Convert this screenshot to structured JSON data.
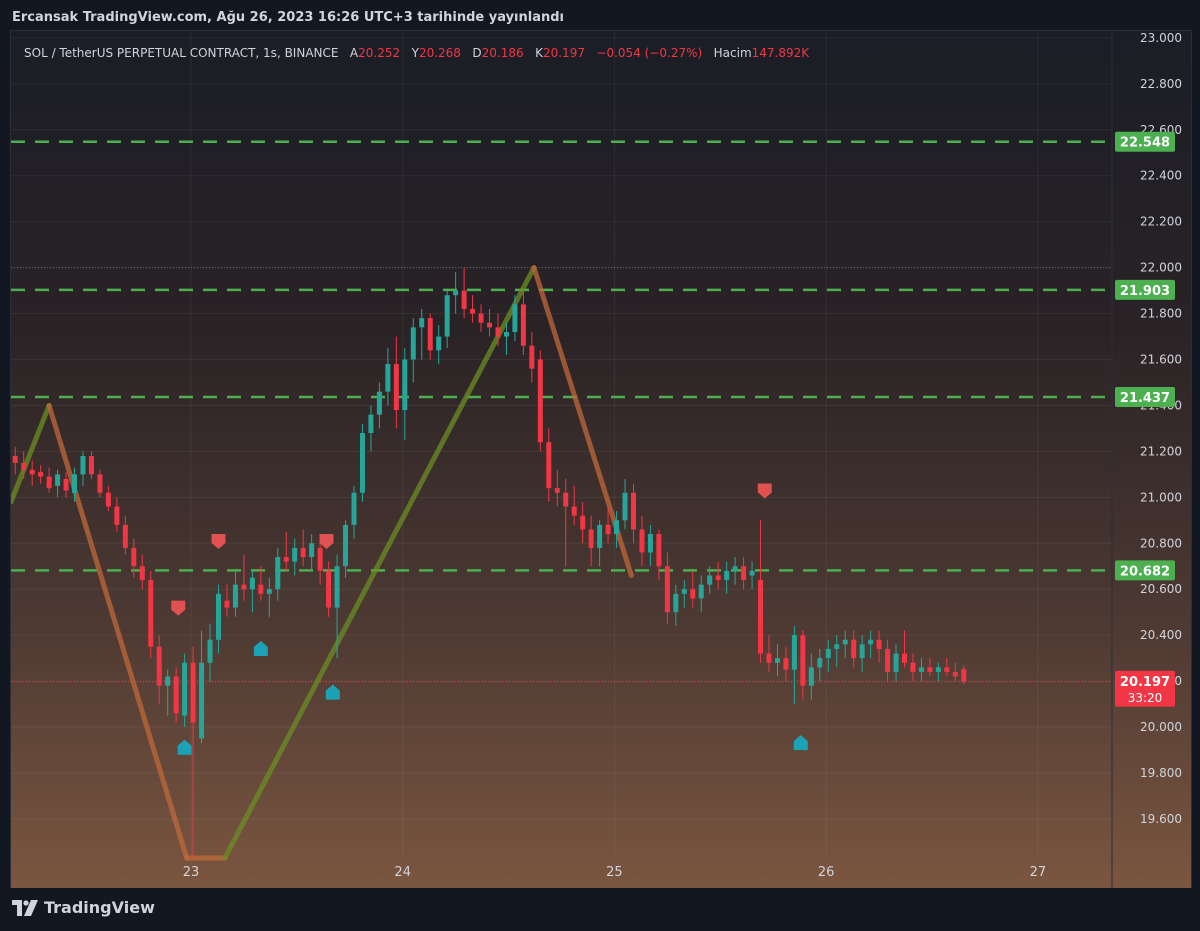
{
  "header": {
    "published": "Ercansak TradingView.com, Ağu 26, 2023 16:26 UTC+3 tarihinde yayınlandı"
  },
  "legend": {
    "symbol": "SOL / TetherUS PERPETUAL CONTRACT, 1s, BINANCE",
    "open_label": "A",
    "open": "20.252",
    "high_label": "Y",
    "high": "20.268",
    "low_label": "D",
    "low": "20.186",
    "close_label": "K",
    "close": "20.197",
    "change": "−0.054 (−0.27%)",
    "volume_label": "Hacim",
    "volume": "147.892K"
  },
  "footer": {
    "brand": "TradingView"
  },
  "colors": {
    "up": "#26a69a",
    "down": "#f23645",
    "level": "#4caf50",
    "zigzag_up": "#6b8e23",
    "zigzag_down": "#c0683a",
    "marker_sell": "#e05252",
    "marker_buy": "#1ba3b5"
  },
  "chart_data": {
    "type": "candlestick",
    "y_axis_ticks": [
      "19.600",
      "19.800",
      "20.000",
      "20.200",
      "20.400",
      "20.600",
      "20.800",
      "21.000",
      "21.200",
      "21.400",
      "21.600",
      "21.800",
      "22.000",
      "22.200",
      "22.400",
      "22.600",
      "22.800",
      "23.000"
    ],
    "x_axis_ticks": [
      "23",
      "24",
      "25",
      "26",
      "27"
    ],
    "ylim": [
      19.43,
      23.03
    ],
    "xlim": [
      22.15,
      27.35
    ],
    "levels": [
      {
        "label": "22.548",
        "value": 22.548
      },
      {
        "label": "21.903",
        "value": 21.903
      },
      {
        "label": "21.437",
        "value": 21.437
      },
      {
        "label": "20.682",
        "value": 20.682
      }
    ],
    "last_price": {
      "label": "20.197",
      "value": 20.197,
      "countdown": "33:20"
    },
    "zigzag": [
      {
        "x": 22.15,
        "y": 20.98
      },
      {
        "x": 22.33,
        "y": 21.4
      },
      {
        "x": 22.98,
        "y": 19.43
      },
      {
        "x": 23.16,
        "y": 19.43
      },
      {
        "x": 24.62,
        "y": 22.0
      },
      {
        "x": 25.08,
        "y": 20.66
      }
    ],
    "sell_markers": [
      {
        "x": 22.94,
        "y": 20.52
      },
      {
        "x": 23.13,
        "y": 20.81
      },
      {
        "x": 23.64,
        "y": 20.81
      },
      {
        "x": 25.71,
        "y": 21.03
      }
    ],
    "buy_markers": [
      {
        "x": 22.97,
        "y": 19.91
      },
      {
        "x": 23.33,
        "y": 20.34
      },
      {
        "x": 23.67,
        "y": 20.15
      },
      {
        "x": 25.88,
        "y": 19.93
      }
    ],
    "candles": [
      {
        "x": 22.17,
        "o": 21.18,
        "h": 21.22,
        "l": 21.1,
        "c": 21.15
      },
      {
        "x": 22.21,
        "o": 21.15,
        "h": 21.2,
        "l": 21.08,
        "c": 21.12
      },
      {
        "x": 22.25,
        "o": 21.12,
        "h": 21.16,
        "l": 21.05,
        "c": 21.1
      },
      {
        "x": 22.29,
        "o": 21.11,
        "h": 21.14,
        "l": 21.06,
        "c": 21.09
      },
      {
        "x": 22.33,
        "o": 21.09,
        "h": 21.13,
        "l": 21.02,
        "c": 21.04
      },
      {
        "x": 22.37,
        "o": 21.05,
        "h": 21.12,
        "l": 21.0,
        "c": 21.1
      },
      {
        "x": 22.41,
        "o": 21.08,
        "h": 21.11,
        "l": 21.0,
        "c": 21.03
      },
      {
        "x": 22.45,
        "o": 21.02,
        "h": 21.13,
        "l": 20.98,
        "c": 21.1
      },
      {
        "x": 22.49,
        "o": 21.1,
        "h": 21.2,
        "l": 21.05,
        "c": 21.18
      },
      {
        "x": 22.53,
        "o": 21.18,
        "h": 21.2,
        "l": 21.08,
        "c": 21.1
      },
      {
        "x": 22.57,
        "o": 21.1,
        "h": 21.12,
        "l": 21.0,
        "c": 21.02
      },
      {
        "x": 22.61,
        "o": 21.02,
        "h": 21.05,
        "l": 20.94,
        "c": 20.96
      },
      {
        "x": 22.65,
        "o": 20.96,
        "h": 21.0,
        "l": 20.85,
        "c": 20.88
      },
      {
        "x": 22.69,
        "o": 20.88,
        "h": 20.92,
        "l": 20.75,
        "c": 20.78
      },
      {
        "x": 22.73,
        "o": 20.78,
        "h": 20.82,
        "l": 20.65,
        "c": 20.7
      },
      {
        "x": 22.77,
        "o": 20.7,
        "h": 20.75,
        "l": 20.6,
        "c": 20.64
      },
      {
        "x": 22.81,
        "o": 20.64,
        "h": 20.68,
        "l": 20.3,
        "c": 20.35
      },
      {
        "x": 22.85,
        "o": 20.35,
        "h": 20.4,
        "l": 20.1,
        "c": 20.18
      },
      {
        "x": 22.89,
        "o": 20.18,
        "h": 20.25,
        "l": 20.05,
        "c": 20.22
      },
      {
        "x": 22.93,
        "o": 20.22,
        "h": 20.26,
        "l": 20.02,
        "c": 20.06
      },
      {
        "x": 22.97,
        "o": 20.05,
        "h": 20.32,
        "l": 20.0,
        "c": 20.28
      },
      {
        "x": 23.01,
        "o": 20.28,
        "h": 20.35,
        "l": 19.43,
        "c": 20.02
      },
      {
        "x": 23.05,
        "o": 19.95,
        "h": 20.42,
        "l": 19.93,
        "c": 20.28
      },
      {
        "x": 23.09,
        "o": 20.28,
        "h": 20.45,
        "l": 20.2,
        "c": 20.38
      },
      {
        "x": 23.13,
        "o": 20.38,
        "h": 20.62,
        "l": 20.32,
        "c": 20.58
      },
      {
        "x": 23.17,
        "o": 20.55,
        "h": 20.62,
        "l": 20.48,
        "c": 20.52
      },
      {
        "x": 23.21,
        "o": 20.52,
        "h": 20.68,
        "l": 20.48,
        "c": 20.62
      },
      {
        "x": 23.25,
        "o": 20.62,
        "h": 20.75,
        "l": 20.55,
        "c": 20.6
      },
      {
        "x": 23.29,
        "o": 20.6,
        "h": 20.68,
        "l": 20.5,
        "c": 20.65
      },
      {
        "x": 23.33,
        "o": 20.62,
        "h": 20.7,
        "l": 20.55,
        "c": 20.58
      },
      {
        "x": 23.37,
        "o": 20.58,
        "h": 20.65,
        "l": 20.48,
        "c": 20.6
      },
      {
        "x": 23.41,
        "o": 20.6,
        "h": 20.78,
        "l": 20.55,
        "c": 20.74
      },
      {
        "x": 23.45,
        "o": 20.74,
        "h": 20.85,
        "l": 20.68,
        "c": 20.72
      },
      {
        "x": 23.49,
        "o": 20.72,
        "h": 20.82,
        "l": 20.66,
        "c": 20.78
      },
      {
        "x": 23.53,
        "o": 20.78,
        "h": 20.86,
        "l": 20.7,
        "c": 20.74
      },
      {
        "x": 23.57,
        "o": 20.74,
        "h": 20.84,
        "l": 20.68,
        "c": 20.8
      },
      {
        "x": 23.61,
        "o": 20.78,
        "h": 20.82,
        "l": 20.62,
        "c": 20.68
      },
      {
        "x": 23.65,
        "o": 20.68,
        "h": 20.72,
        "l": 20.48,
        "c": 20.52
      },
      {
        "x": 23.69,
        "o": 20.52,
        "h": 20.75,
        "l": 20.3,
        "c": 20.7
      },
      {
        "x": 23.73,
        "o": 20.7,
        "h": 20.9,
        "l": 20.65,
        "c": 20.88
      },
      {
        "x": 23.77,
        "o": 20.88,
        "h": 21.05,
        "l": 20.82,
        "c": 21.02
      },
      {
        "x": 23.81,
        "o": 21.02,
        "h": 21.32,
        "l": 20.98,
        "c": 21.28
      },
      {
        "x": 23.85,
        "o": 21.28,
        "h": 21.4,
        "l": 21.2,
        "c": 21.36
      },
      {
        "x": 23.89,
        "o": 21.36,
        "h": 21.5,
        "l": 21.3,
        "c": 21.46
      },
      {
        "x": 23.93,
        "o": 21.46,
        "h": 21.65,
        "l": 21.4,
        "c": 21.58
      },
      {
        "x": 23.97,
        "o": 21.58,
        "h": 21.7,
        "l": 21.3,
        "c": 21.38
      },
      {
        "x": 24.01,
        "o": 21.38,
        "h": 21.65,
        "l": 21.25,
        "c": 21.6
      },
      {
        "x": 24.05,
        "o": 21.6,
        "h": 21.78,
        "l": 21.5,
        "c": 21.74
      },
      {
        "x": 24.09,
        "o": 21.74,
        "h": 21.82,
        "l": 21.6,
        "c": 21.78
      },
      {
        "x": 24.13,
        "o": 21.78,
        "h": 21.8,
        "l": 21.6,
        "c": 21.64
      },
      {
        "x": 24.17,
        "o": 21.64,
        "h": 21.75,
        "l": 21.58,
        "c": 21.7
      },
      {
        "x": 24.21,
        "o": 21.7,
        "h": 21.9,
        "l": 21.65,
        "c": 21.88
      },
      {
        "x": 24.25,
        "o": 21.88,
        "h": 21.98,
        "l": 21.8,
        "c": 21.9
      },
      {
        "x": 24.29,
        "o": 21.9,
        "h": 22.0,
        "l": 21.78,
        "c": 21.82
      },
      {
        "x": 24.33,
        "o": 21.82,
        "h": 21.88,
        "l": 21.76,
        "c": 21.8
      },
      {
        "x": 24.37,
        "o": 21.8,
        "h": 21.84,
        "l": 21.72,
        "c": 21.76
      },
      {
        "x": 24.41,
        "o": 21.76,
        "h": 21.82,
        "l": 21.7,
        "c": 21.74
      },
      {
        "x": 24.45,
        "o": 21.74,
        "h": 21.8,
        "l": 21.66,
        "c": 21.7
      },
      {
        "x": 24.49,
        "o": 21.7,
        "h": 21.76,
        "l": 21.62,
        "c": 21.72
      },
      {
        "x": 24.53,
        "o": 21.72,
        "h": 21.88,
        "l": 21.68,
        "c": 21.84
      },
      {
        "x": 24.57,
        "o": 21.84,
        "h": 21.9,
        "l": 21.62,
        "c": 21.66
      },
      {
        "x": 24.61,
        "o": 21.66,
        "h": 21.72,
        "l": 21.5,
        "c": 21.56
      },
      {
        "x": 24.65,
        "o": 21.6,
        "h": 21.64,
        "l": 21.2,
        "c": 21.24
      },
      {
        "x": 24.69,
        "o": 21.24,
        "h": 21.3,
        "l": 20.98,
        "c": 21.04
      },
      {
        "x": 24.73,
        "o": 21.04,
        "h": 21.12,
        "l": 20.96,
        "c": 21.02
      },
      {
        "x": 24.77,
        "o": 21.02,
        "h": 21.08,
        "l": 20.7,
        "c": 20.96
      },
      {
        "x": 24.81,
        "o": 20.96,
        "h": 21.05,
        "l": 20.88,
        "c": 20.92
      },
      {
        "x": 24.85,
        "o": 20.92,
        "h": 20.98,
        "l": 20.8,
        "c": 20.86
      },
      {
        "x": 24.89,
        "o": 20.86,
        "h": 20.92,
        "l": 20.7,
        "c": 20.78
      },
      {
        "x": 24.93,
        "o": 20.78,
        "h": 20.9,
        "l": 20.7,
        "c": 20.88
      },
      {
        "x": 24.97,
        "o": 20.88,
        "h": 20.96,
        "l": 20.8,
        "c": 20.84
      },
      {
        "x": 25.01,
        "o": 20.84,
        "h": 20.94,
        "l": 20.78,
        "c": 20.9
      },
      {
        "x": 25.05,
        "o": 20.9,
        "h": 21.08,
        "l": 20.86,
        "c": 21.02
      },
      {
        "x": 25.09,
        "o": 21.02,
        "h": 21.06,
        "l": 20.8,
        "c": 20.86
      },
      {
        "x": 25.13,
        "o": 20.86,
        "h": 20.92,
        "l": 20.7,
        "c": 20.76
      },
      {
        "x": 25.17,
        "o": 20.76,
        "h": 20.88,
        "l": 20.7,
        "c": 20.84
      },
      {
        "x": 25.21,
        "o": 20.84,
        "h": 20.86,
        "l": 20.64,
        "c": 20.7
      },
      {
        "x": 25.25,
        "o": 20.7,
        "h": 20.76,
        "l": 20.45,
        "c": 20.5
      },
      {
        "x": 25.29,
        "o": 20.5,
        "h": 20.62,
        "l": 20.44,
        "c": 20.58
      },
      {
        "x": 25.33,
        "o": 20.58,
        "h": 20.64,
        "l": 20.52,
        "c": 20.6
      },
      {
        "x": 25.37,
        "o": 20.6,
        "h": 20.68,
        "l": 20.52,
        "c": 20.56
      },
      {
        "x": 25.41,
        "o": 20.56,
        "h": 20.66,
        "l": 20.5,
        "c": 20.62
      },
      {
        "x": 25.45,
        "o": 20.62,
        "h": 20.7,
        "l": 20.58,
        "c": 20.66
      },
      {
        "x": 25.49,
        "o": 20.66,
        "h": 20.72,
        "l": 20.6,
        "c": 20.64
      },
      {
        "x": 25.53,
        "o": 20.64,
        "h": 20.72,
        "l": 20.58,
        "c": 20.68
      },
      {
        "x": 25.57,
        "o": 20.68,
        "h": 20.74,
        "l": 20.62,
        "c": 20.7
      },
      {
        "x": 25.61,
        "o": 20.7,
        "h": 20.74,
        "l": 20.6,
        "c": 20.64
      },
      {
        "x": 25.65,
        "o": 20.66,
        "h": 20.72,
        "l": 20.6,
        "c": 20.68
      },
      {
        "x": 25.69,
        "o": 20.64,
        "h": 20.9,
        "l": 20.28,
        "c": 20.32
      },
      {
        "x": 25.73,
        "o": 20.32,
        "h": 20.4,
        "l": 20.24,
        "c": 20.28
      },
      {
        "x": 25.77,
        "o": 20.28,
        "h": 20.36,
        "l": 20.22,
        "c": 20.3
      },
      {
        "x": 25.81,
        "o": 20.3,
        "h": 20.35,
        "l": 20.2,
        "c": 20.25
      },
      {
        "x": 25.85,
        "o": 20.25,
        "h": 20.44,
        "l": 20.1,
        "c": 20.4
      },
      {
        "x": 25.89,
        "o": 20.4,
        "h": 20.42,
        "l": 20.12,
        "c": 20.18
      },
      {
        "x": 25.93,
        "o": 20.18,
        "h": 20.32,
        "l": 20.12,
        "c": 20.26
      },
      {
        "x": 25.97,
        "o": 20.26,
        "h": 20.34,
        "l": 20.2,
        "c": 20.3
      },
      {
        "x": 26.01,
        "o": 20.3,
        "h": 20.38,
        "l": 20.24,
        "c": 20.34
      },
      {
        "x": 26.05,
        "o": 20.34,
        "h": 20.4,
        "l": 20.26,
        "c": 20.36
      },
      {
        "x": 26.09,
        "o": 20.36,
        "h": 20.42,
        "l": 20.3,
        "c": 20.38
      },
      {
        "x": 26.13,
        "o": 20.38,
        "h": 20.42,
        "l": 20.26,
        "c": 20.3
      },
      {
        "x": 26.17,
        "o": 20.3,
        "h": 20.4,
        "l": 20.24,
        "c": 20.36
      },
      {
        "x": 26.21,
        "o": 20.36,
        "h": 20.42,
        "l": 20.3,
        "c": 20.38
      },
      {
        "x": 26.25,
        "o": 20.38,
        "h": 20.42,
        "l": 20.28,
        "c": 20.34
      },
      {
        "x": 26.29,
        "o": 20.34,
        "h": 20.38,
        "l": 20.2,
        "c": 20.24
      },
      {
        "x": 26.33,
        "o": 20.24,
        "h": 20.36,
        "l": 20.2,
        "c": 20.32
      },
      {
        "x": 26.37,
        "o": 20.32,
        "h": 20.42,
        "l": 20.26,
        "c": 20.28
      },
      {
        "x": 26.41,
        "o": 20.28,
        "h": 20.32,
        "l": 20.2,
        "c": 20.24
      },
      {
        "x": 26.45,
        "o": 20.24,
        "h": 20.3,
        "l": 20.2,
        "c": 20.26
      },
      {
        "x": 26.49,
        "o": 20.26,
        "h": 20.3,
        "l": 20.22,
        "c": 20.24
      },
      {
        "x": 26.53,
        "o": 20.24,
        "h": 20.28,
        "l": 20.2,
        "c": 20.26
      },
      {
        "x": 26.57,
        "o": 20.26,
        "h": 20.3,
        "l": 20.22,
        "c": 20.24
      },
      {
        "x": 26.61,
        "o": 20.24,
        "h": 20.28,
        "l": 20.2,
        "c": 20.22
      },
      {
        "x": 26.65,
        "o": 20.252,
        "h": 20.268,
        "l": 20.186,
        "c": 20.197
      }
    ]
  }
}
